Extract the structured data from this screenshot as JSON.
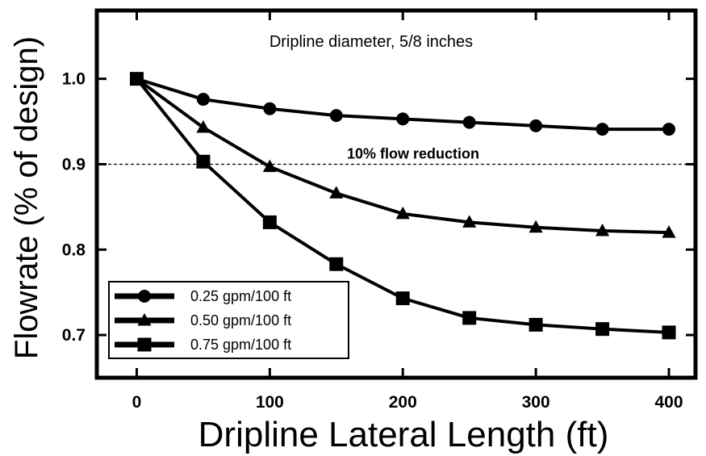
{
  "chart_data": {
    "type": "line",
    "title": "",
    "xlabel": "Dripline Lateral Length (ft)",
    "ylabel": "Flowrate (% of design)",
    "xlim": [
      -30,
      420
    ],
    "ylim": [
      0.65,
      1.08
    ],
    "xticks": [
      0,
      100,
      200,
      300,
      400
    ],
    "yticks": [
      0.7,
      0.8,
      0.9,
      1.0
    ],
    "x": [
      0,
      50,
      100,
      150,
      200,
      250,
      300,
      350,
      400
    ],
    "grid": false,
    "legend_position": "bottom-left",
    "series": [
      {
        "name": "0.25 gpm/100 ft",
        "marker": "circle",
        "values": [
          1.0,
          0.976,
          0.965,
          0.957,
          0.953,
          0.949,
          0.945,
          0.941,
          0.941
        ]
      },
      {
        "name": "0.50 gpm/100 ft",
        "marker": "triangle",
        "values": [
          1.0,
          0.943,
          0.897,
          0.866,
          0.842,
          0.832,
          0.826,
          0.822,
          0.82
        ]
      },
      {
        "name": "0.75 gpm/100 ft",
        "marker": "square",
        "values": [
          1.0,
          0.903,
          0.832,
          0.783,
          0.743,
          0.72,
          0.712,
          0.707,
          0.703
        ]
      }
    ],
    "reference_line": {
      "y": 0.9,
      "label": "10% flow reduction"
    },
    "annotation": "Dripline diameter, 5/8 inches"
  }
}
